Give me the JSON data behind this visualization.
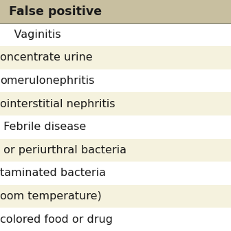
{
  "header": "False positive",
  "header_bg": "#c8bfa0",
  "header_color": "#1a1a1a",
  "rows": [
    {
      "text": "    Vaginitis",
      "bg": "#ffffff"
    },
    {
      "text": "oncentrate urine",
      "bg": "#f5f2de"
    },
    {
      "text": "omerulonephritis",
      "bg": "#ffffff"
    },
    {
      "text": "ointerstitial nephritis",
      "bg": "#f5f2de"
    },
    {
      "text": " Febrile disease",
      "bg": "#ffffff"
    },
    {
      "text": " or periurthral bacteria",
      "bg": "#f5f2de"
    },
    {
      "text": "taminated bacteria",
      "bg": "#ffffff"
    },
    {
      "text": "oom temperature)",
      "bg": "#f5f2de"
    },
    {
      "text": "colored food or drug",
      "bg": "#ffffff"
    }
  ],
  "separator_color": "#888877",
  "text_color": "#1a1a1a",
  "font_size": 11.5,
  "header_font_size": 12.5,
  "figsize": [
    3.36,
    3.36
  ],
  "dpi": 100
}
